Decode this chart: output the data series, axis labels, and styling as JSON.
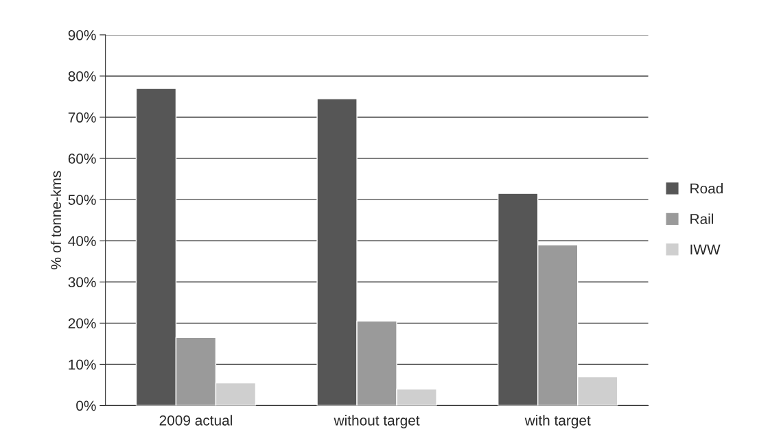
{
  "chart_data": {
    "type": "bar",
    "ylabel": "% of tonne-kms",
    "categories": [
      "2009 actual",
      "without target",
      "with target"
    ],
    "series": [
      {
        "name": "Road",
        "color": "#565656",
        "values": [
          77,
          74.5,
          51.5
        ]
      },
      {
        "name": "Rail",
        "color": "#9a9a9a",
        "values": [
          16.5,
          20.5,
          39
        ]
      },
      {
        "name": "IWW",
        "color": "#cfcfcf",
        "values": [
          5.5,
          4,
          7
        ]
      }
    ],
    "ylim": [
      0,
      90
    ],
    "yticks": [
      {
        "value": 0,
        "label": "0%"
      },
      {
        "value": 10,
        "label": "10%"
      },
      {
        "value": 20,
        "label": "20%"
      },
      {
        "value": 30,
        "label": "30%"
      },
      {
        "value": 40,
        "label": "40%"
      },
      {
        "value": 50,
        "label": "50%"
      },
      {
        "value": 60,
        "label": "60%"
      },
      {
        "value": 70,
        "label": "70%"
      },
      {
        "value": 80,
        "label": "80%"
      },
      {
        "value": 90,
        "label": "90%"
      }
    ],
    "grid": "y",
    "legend": "right"
  }
}
